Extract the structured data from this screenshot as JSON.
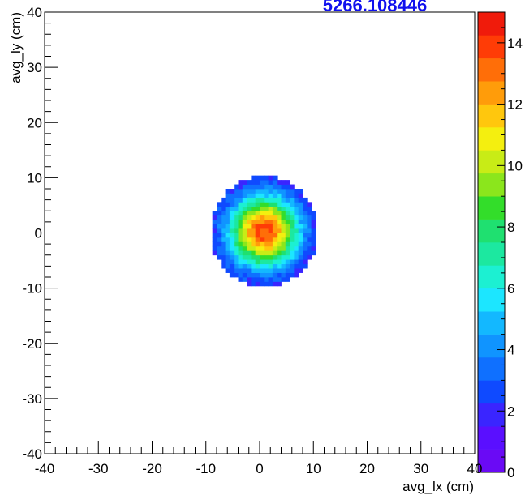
{
  "chart_data": {
    "type": "heatmap",
    "title": "5266.108446",
    "xlabel": "avg_lx (cm)",
    "ylabel": "avg_ly (cm)",
    "xlim": [
      -40,
      40
    ],
    "ylim": [
      -40,
      40
    ],
    "zlim": [
      0,
      15
    ],
    "x_ticks": [
      -40,
      -30,
      -20,
      -10,
      0,
      10,
      20,
      30,
      40
    ],
    "y_ticks": [
      -40,
      -30,
      -20,
      -10,
      0,
      10,
      20,
      30,
      40
    ],
    "z_ticks": [
      0,
      2,
      4,
      6,
      8,
      10,
      12,
      14
    ],
    "blob": {
      "center": [
        0.8,
        0.3
      ],
      "radius": 10,
      "peak_value": 14,
      "edge_value": 1
    },
    "palette": [
      "#6a0af5",
      "#5a0fff",
      "#3a25ff",
      "#0f4aff",
      "#0f70ff",
      "#1094ff",
      "#13b8ff",
      "#1ce6ff",
      "#1cf0d2",
      "#1ce8a0",
      "#1fe070",
      "#33dd2a",
      "#8be61c",
      "#c8ec16",
      "#f4ef0f",
      "#ffc70d",
      "#ff9c0a",
      "#ff6e08",
      "#ff3c06",
      "#f01b0b"
    ]
  }
}
